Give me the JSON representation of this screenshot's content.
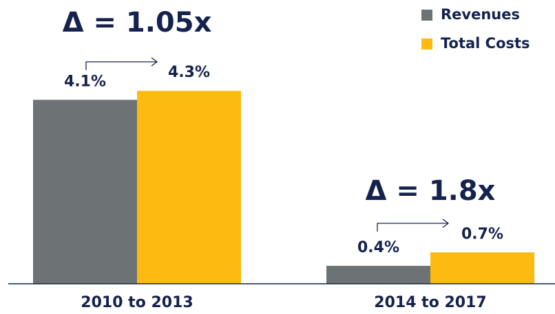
{
  "chart_data": {
    "type": "bar",
    "categories": [
      "2010 to 2013",
      "2014 to 2017"
    ],
    "series": [
      {
        "name": "Revenues",
        "color": "#6d7374",
        "values": [
          4.1,
          0.4
        ],
        "value_labels": [
          "4.1%",
          "0.4%"
        ]
      },
      {
        "name": "Total Costs",
        "color": "#fdbb12",
        "values": [
          4.3,
          0.7
        ],
        "value_labels": [
          "4.3%",
          "0.7%"
        ]
      }
    ],
    "annotations": [
      "Δ = 1.05x",
      "Δ = 1.8x"
    ],
    "legend": "top-right"
  }
}
